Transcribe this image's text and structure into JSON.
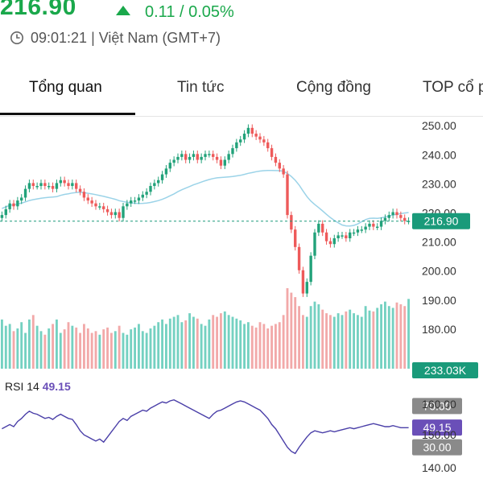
{
  "quote": {
    "price": "216.90",
    "change": "0.11 / 0.05%",
    "time": "09:01:21 | Việt Nam (GMT+7)",
    "color_up": "#1aa84b",
    "color_down": "#ee5a5a"
  },
  "tabs": [
    {
      "label": "Tổng quan",
      "active": true
    },
    {
      "label": "Tin tức",
      "active": false
    },
    {
      "label": "Cộng đồng",
      "active": false
    },
    {
      "label": "TOP cổ p",
      "active": false
    }
  ],
  "chart_data": {
    "type": "candlestick",
    "price_axis": {
      "ticks": [
        "250.00",
        "240.00",
        "230.00",
        "220.00",
        "210.00",
        "200.00",
        "190.00",
        "180.00",
        "170.00"
      ],
      "ylim": [
        170,
        252
      ]
    },
    "rsi_axis": {
      "ticks": [
        "160.00",
        "150.00",
        "140.00"
      ],
      "rsi_ylim": [
        0,
        100
      ]
    },
    "last_price_label": "216.90",
    "volume_label": "233.03K",
    "rsi_label": "RSI 14",
    "rsi_value": "49.15",
    "rsi_upper": "70.00",
    "rsi_lower": "30.00",
    "closes": [
      219,
      221,
      223,
      222,
      224,
      225,
      228,
      230,
      229,
      229,
      230,
      229,
      229,
      228,
      230,
      231,
      230,
      229,
      230,
      228,
      227,
      225,
      224,
      223,
      222,
      222,
      221,
      220,
      219,
      220,
      218,
      222,
      223,
      224,
      224,
      225,
      226,
      227,
      229,
      230,
      231,
      233,
      235,
      237,
      238,
      239,
      240,
      238,
      239,
      240,
      238,
      239,
      240,
      240,
      239,
      238,
      236,
      238,
      240,
      242,
      244,
      245,
      247,
      249,
      247,
      246,
      245,
      244,
      242,
      239,
      237,
      235,
      233,
      219,
      214,
      208,
      200,
      192,
      196,
      205,
      213,
      216,
      213,
      210,
      209,
      211,
      212,
      212,
      211,
      213,
      213,
      214,
      214,
      215,
      216,
      215,
      215,
      217,
      218,
      219,
      220,
      219,
      218,
      217,
      217
    ],
    "volumes": [
      55,
      48,
      50,
      42,
      45,
      52,
      40,
      55,
      60,
      48,
      42,
      38,
      45,
      50,
      55,
      40,
      44,
      52,
      48,
      46,
      40,
      50,
      45,
      40,
      42,
      38,
      44,
      46,
      40,
      42,
      48,
      40,
      38,
      44,
      46,
      50,
      42,
      40,
      45,
      48,
      52,
      55,
      50,
      56,
      58,
      60,
      52,
      54,
      62,
      58,
      56,
      50,
      48,
      55,
      60,
      58,
      62,
      64,
      60,
      58,
      56,
      54,
      50,
      52,
      48,
      46,
      52,
      50,
      45,
      48,
      50,
      52,
      60,
      90,
      85,
      80,
      70,
      60,
      58,
      70,
      75,
      72,
      66,
      62,
      60,
      58,
      62,
      60,
      64,
      66,
      62,
      60,
      58,
      70,
      65,
      64,
      68,
      72,
      75,
      70,
      68,
      74,
      72,
      70,
      78
    ],
    "rsi": [
      48,
      50,
      52,
      50,
      55,
      58,
      62,
      65,
      63,
      62,
      60,
      58,
      59,
      57,
      60,
      62,
      60,
      58,
      57,
      52,
      46,
      42,
      40,
      38,
      36,
      38,
      35,
      40,
      45,
      50,
      55,
      58,
      56,
      60,
      62,
      64,
      66,
      65,
      68,
      70,
      72,
      74,
      73,
      75,
      76,
      74,
      72,
      70,
      68,
      66,
      64,
      62,
      60,
      58,
      62,
      65,
      66,
      68,
      70,
      72,
      74,
      75,
      74,
      72,
      70,
      68,
      66,
      62,
      58,
      52,
      48,
      42,
      36,
      30,
      26,
      24,
      30,
      35,
      40,
      44,
      46,
      45,
      44,
      45,
      46,
      45,
      46,
      47,
      48,
      49,
      48,
      49,
      50,
      51,
      52,
      53,
      52,
      51,
      50,
      50,
      51,
      50,
      49,
      49,
      49
    ],
    "ma_start": 224,
    "ma_end": 223
  }
}
